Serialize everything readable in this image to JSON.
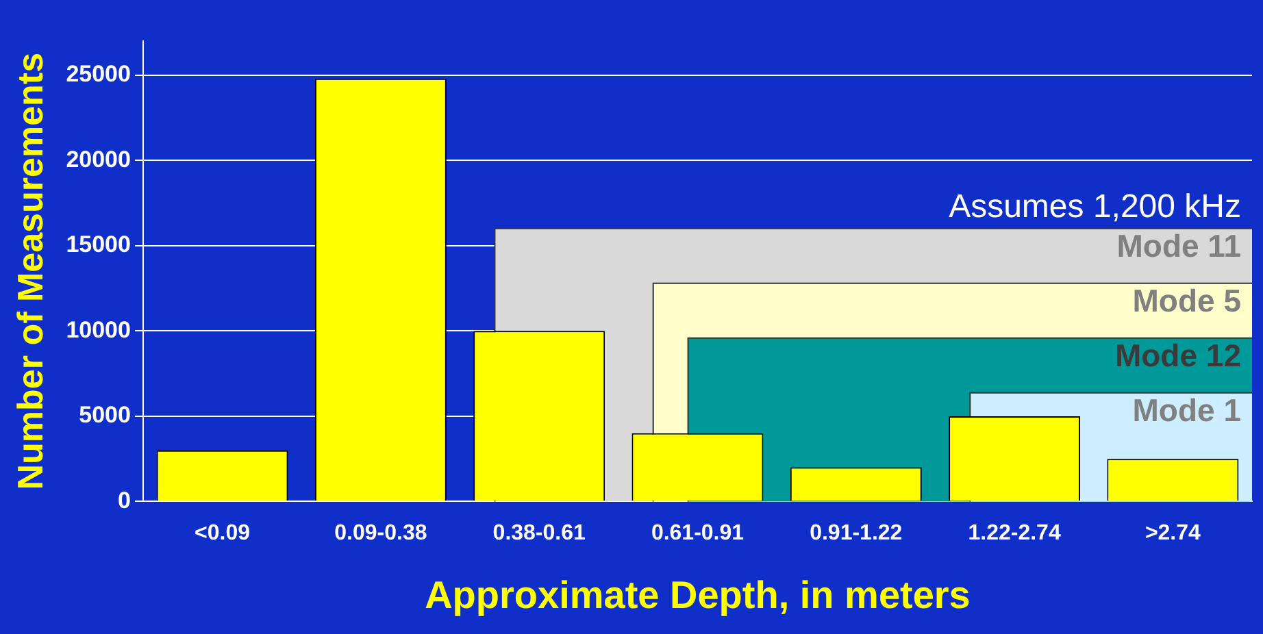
{
  "chart_data": {
    "type": "bar",
    "xlabel": "Approximate Depth, in meters",
    "ylabel": "Number of Measurements",
    "categories": [
      "<0.09",
      "0.09-0.38",
      "0.38-0.61",
      "0.61-0.91",
      "0.91-1.22",
      "1.22-2.74",
      ">2.74"
    ],
    "values": [
      3000,
      24800,
      10000,
      4000,
      2000,
      5000,
      2500
    ],
    "color": "#ffff00",
    "ylim": [
      0,
      27000
    ],
    "yticks": [
      0,
      5000,
      10000,
      15000,
      20000,
      25000
    ],
    "grid": "y",
    "legend": false,
    "bands": [
      {
        "axis": "x",
        "from": "0.38-0.61",
        "to": ">2.74",
        "label": "Mode 11",
        "color": "#d9d9d9"
      },
      {
        "axis": "x",
        "from": "0.61-0.91",
        "to": ">2.74",
        "label": "Mode 5",
        "color": "#ffffcc"
      },
      {
        "axis": "x",
        "from": "0.61-0.91",
        "to": ">2.74",
        "label": "Mode 12",
        "color": "#009999"
      },
      {
        "axis": "x",
        "from": "1.22-2.74",
        "to": ">2.74",
        "label": "Mode 1",
        "color": "#cceeff"
      }
    ],
    "annotations": [
      "Assumes 1,200 kHz"
    ]
  }
}
